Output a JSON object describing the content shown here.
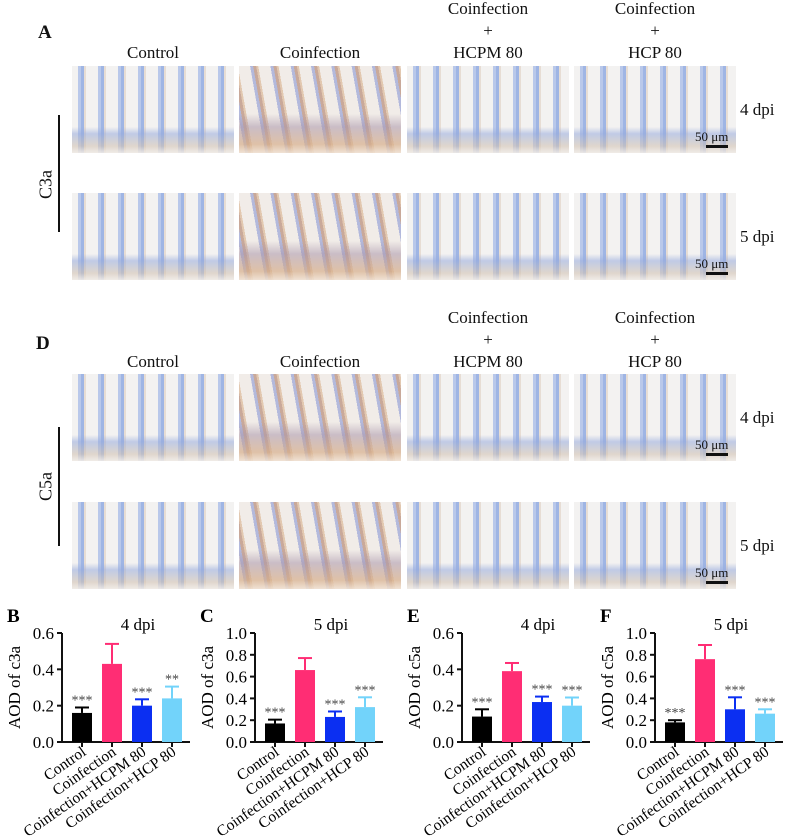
{
  "panel_a": {
    "label": "A",
    "marker": "C3a",
    "columns": [
      {
        "lines": [
          "Control"
        ]
      },
      {
        "lines": [
          "Coinfection"
        ]
      },
      {
        "lines": [
          "Coinfection",
          "+",
          "HCPM 80"
        ]
      },
      {
        "lines": [
          "Coinfection",
          "+",
          "HCP 80"
        ]
      }
    ],
    "rows": [
      "4 dpi",
      "5 dpi"
    ],
    "scale_bar": "50 μm"
  },
  "panel_d": {
    "label": "D",
    "marker": "C5a",
    "columns": [
      {
        "lines": [
          "Control"
        ]
      },
      {
        "lines": [
          "Coinfection"
        ]
      },
      {
        "lines": [
          "Coinfection",
          "+",
          "HCPM 80"
        ]
      },
      {
        "lines": [
          "Coinfection",
          "+",
          "HCP 80"
        ]
      }
    ],
    "rows": [
      "4 dpi",
      "5 dpi"
    ],
    "scale_bar": "50 μm"
  },
  "colors": {
    "Control": "#000000",
    "Coinfection": "#ff2d74",
    "Coinfection+HCPM 80": "#0b2ff2",
    "Coinfection+HCP 80": "#72d3fa"
  },
  "chart_data": [
    {
      "panel": "B",
      "type": "bar",
      "title": "4 dpi",
      "ylabel": "AOD of c3a",
      "ylim": [
        0,
        0.6
      ],
      "yticks": [
        "0.0",
        "0.2",
        "0.4",
        "0.6"
      ],
      "categories": [
        "Control",
        "Coinfection",
        "Coinfection+HCPM 80",
        "Coinfection+HCP 80"
      ],
      "values": [
        0.16,
        0.43,
        0.2,
        0.24
      ],
      "errors": [
        0.03,
        0.11,
        0.035,
        0.065
      ],
      "significance": [
        "***",
        "",
        "***",
        "**"
      ]
    },
    {
      "panel": "C",
      "type": "bar",
      "title": "5 dpi",
      "ylabel": "AOD of c3a",
      "ylim": [
        0,
        1.0
      ],
      "yticks": [
        "0.0",
        "0.2",
        "0.4",
        "0.6",
        "0.8",
        "1.0"
      ],
      "categories": [
        "Control",
        "Coinfection",
        "Coinfection+HCPM 80",
        "Coinfection+HCP 80"
      ],
      "values": [
        0.17,
        0.66,
        0.23,
        0.32
      ],
      "errors": [
        0.035,
        0.11,
        0.05,
        0.09
      ],
      "significance": [
        "***",
        "",
        "***",
        "***"
      ]
    },
    {
      "panel": "E",
      "type": "bar",
      "title": "4 dpi",
      "ylabel": "AOD of c5a",
      "ylim": [
        0,
        0.6
      ],
      "yticks": [
        "0.0",
        "0.2",
        "0.4",
        "0.6"
      ],
      "categories": [
        "Control",
        "Coinfection",
        "Coinfection+HCPM 80",
        "Coinfection+HCP 80"
      ],
      "values": [
        0.14,
        0.39,
        0.22,
        0.2
      ],
      "errors": [
        0.04,
        0.045,
        0.03,
        0.045
      ],
      "significance": [
        "***",
        "",
        "***",
        "***"
      ]
    },
    {
      "panel": "F",
      "type": "bar",
      "title": "5 dpi",
      "ylabel": "AOD of c5a",
      "ylim": [
        0,
        1.0
      ],
      "yticks": [
        "0.0",
        "0.2",
        "0.4",
        "0.6",
        "0.8",
        "1.0"
      ],
      "categories": [
        "Control",
        "Coinfection",
        "Coinfection+HCPM 80",
        "Coinfection+HCP 80"
      ],
      "values": [
        0.18,
        0.76,
        0.3,
        0.26
      ],
      "errors": [
        0.02,
        0.13,
        0.11,
        0.04
      ],
      "significance": [
        "***",
        "",
        "***",
        "***"
      ]
    }
  ]
}
